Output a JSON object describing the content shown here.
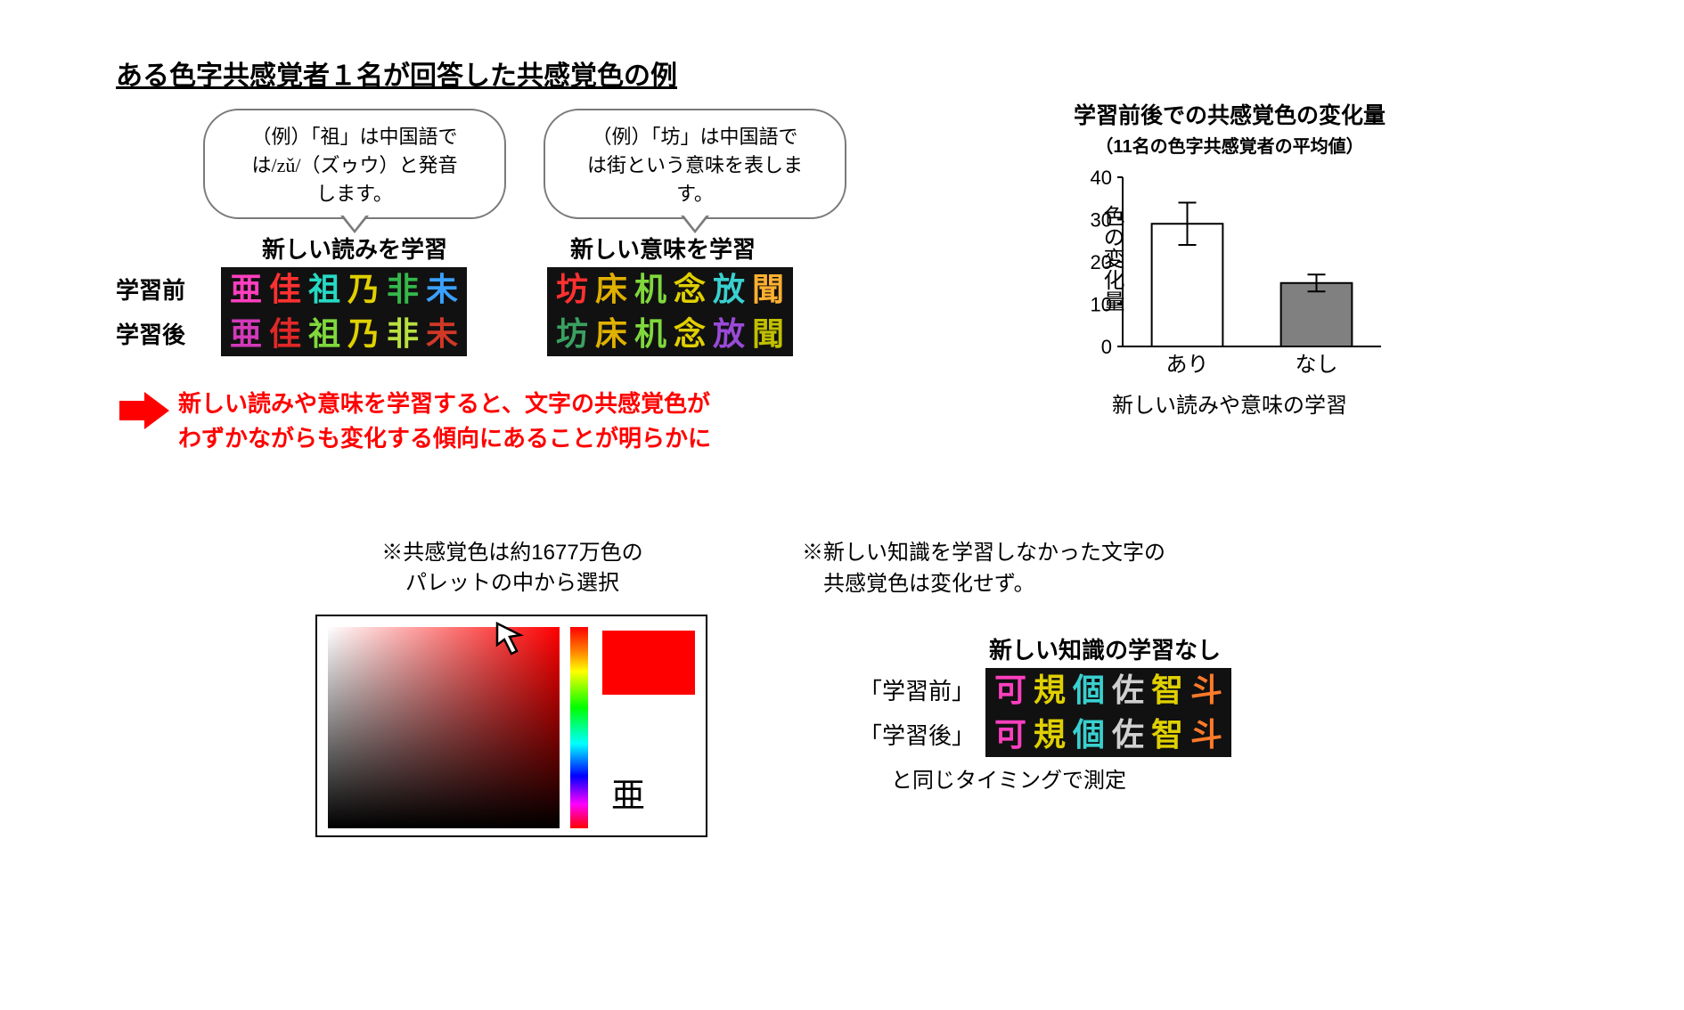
{
  "title": "ある色字共感覚者１名が回答した共感覚色の例",
  "bubble_left": "（例）「祖」は中国語で\nは/zǔ/（ズゥウ）と発音\nします。",
  "bubble_right": "（例）「坊」は中国語で\nは街という意味を表しま\nす。",
  "subhead_a": "新しい読みを学習",
  "subhead_b": "新しい意味を学習",
  "row_before": "学習前",
  "row_after": "学習後",
  "block_a": {
    "before": [
      {
        "char": "亜",
        "color": "#ff3fbf"
      },
      {
        "char": "佳",
        "color": "#ff3030"
      },
      {
        "char": "祖",
        "color": "#26d9c4"
      },
      {
        "char": "乃",
        "color": "#e0d000"
      },
      {
        "char": "非",
        "color": "#34b94a"
      },
      {
        "char": "未",
        "color": "#3aa0ff"
      }
    ],
    "after": [
      {
        "char": "亜",
        "color": "#d23ab8"
      },
      {
        "char": "佳",
        "color": "#e02828"
      },
      {
        "char": "祖",
        "color": "#7fd83c"
      },
      {
        "char": "乃",
        "color": "#e0d000"
      },
      {
        "char": "非",
        "color": "#b8e040"
      },
      {
        "char": "未",
        "color": "#d03828"
      }
    ]
  },
  "block_b": {
    "before": [
      {
        "char": "坊",
        "color": "#ff3030"
      },
      {
        "char": "床",
        "color": "#e0b000"
      },
      {
        "char": "机",
        "color": "#7fd83c"
      },
      {
        "char": "念",
        "color": "#e0d000"
      },
      {
        "char": "放",
        "color": "#3ad0d0"
      },
      {
        "char": "聞",
        "color": "#ffb030"
      }
    ],
    "after": [
      {
        "char": "坊",
        "color": "#3aa060"
      },
      {
        "char": "床",
        "color": "#e0b000"
      },
      {
        "char": "机",
        "color": "#7fd83c"
      },
      {
        "char": "念",
        "color": "#e0d000"
      },
      {
        "char": "放",
        "color": "#9a4ad8"
      },
      {
        "char": "聞",
        "color": "#c0c000"
      }
    ]
  },
  "conclusion_l1": "新しい読みや意味を学習すると、文字の共感覚色が",
  "conclusion_l2": "わずかながらも変化する傾向にあることが明らかに",
  "chart": {
    "title": "学習前後での共感覚色の変化量",
    "subtitle": "（11名の色字共感覚者の平均値）",
    "ylabel": "色の変化量",
    "xlabel": "新しい読みや意味の学習",
    "yticks": [
      0,
      10,
      20,
      30,
      40
    ],
    "ylim": [
      0,
      40
    ],
    "categories": [
      "あり",
      "なし"
    ],
    "bars": [
      {
        "value": 29,
        "fill": "#ffffff",
        "err_lo": 24,
        "err_hi": 34
      },
      {
        "value": 15,
        "fill": "#808080",
        "err_lo": 13,
        "err_hi": 17
      }
    ],
    "axis_color": "#000000",
    "bar_stroke": "#000000",
    "bar_width": 0.55,
    "tick_fontsize": 22,
    "cat_fontsize": 24
  },
  "palette_note_l1": "※共感覚色は約1677万色の",
  "palette_note_l2": "パレットの中から選択",
  "swatch_label": "亜",
  "note2_l1": "※新しい知識を学習しなかった文字の",
  "note2_l2": "　共感覚色は変化せず。",
  "subhead_c": "新しい知識の学習なし",
  "row_before_q": "「学習前」",
  "row_after_q": "「学習後」",
  "block_c": {
    "before": [
      {
        "char": "可",
        "color": "#ff3fbf"
      },
      {
        "char": "規",
        "color": "#e0d000"
      },
      {
        "char": "個",
        "color": "#3ad0d0"
      },
      {
        "char": "佐",
        "color": "#d0d0d0"
      },
      {
        "char": "智",
        "color": "#e0d000"
      },
      {
        "char": "斗",
        "color": "#ff7a2a"
      }
    ],
    "after": [
      {
        "char": "可",
        "color": "#ff3fbf"
      },
      {
        "char": "規",
        "color": "#e0d000"
      },
      {
        "char": "個",
        "color": "#3ad0d0"
      },
      {
        "char": "佐",
        "color": "#d0d0d0"
      },
      {
        "char": "智",
        "color": "#e0d000"
      },
      {
        "char": "斗",
        "color": "#ff7a2a"
      }
    ]
  },
  "note3": "と同じタイミングで測定",
  "colors": {
    "accent_red": "#ff0000",
    "bubble_border": "#7a7a7a",
    "kanji_bg": "#111111"
  }
}
